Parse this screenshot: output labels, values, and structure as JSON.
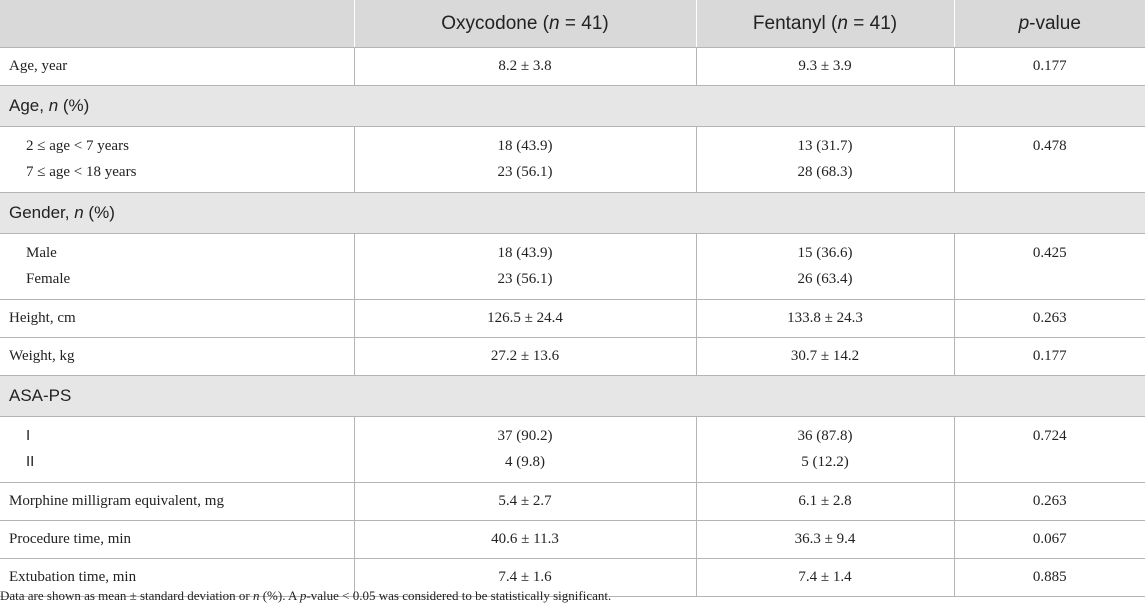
{
  "header": {
    "col1": "",
    "col2_pre": "Oxycodone (",
    "col2_n": "n",
    "col2_post": " = 41)",
    "col3_pre": "Fentanyl (",
    "col3_n": "n",
    "col3_post": " = 41)",
    "col4_p": "p",
    "col4_post": "-value"
  },
  "rows": {
    "age_year": {
      "label": "Age, year",
      "oxy": "8.2 ± 3.8",
      "fen": "9.3 ± 3.9",
      "p": "0.177"
    },
    "age_section": {
      "pre": "Age, ",
      "n": "n",
      "post": " (%)"
    },
    "age_groups": {
      "labels": [
        "2 ≤ age < 7 years",
        "7 ≤ age < 18 years"
      ],
      "oxy": [
        "18 (43.9)",
        "23 (56.1)"
      ],
      "fen": [
        "13 (31.7)",
        "28 (68.3)"
      ],
      "p": "0.478"
    },
    "gender_section": {
      "pre": "Gender, ",
      "n": "n",
      "post": " (%)"
    },
    "gender_groups": {
      "labels": [
        "Male",
        "Female"
      ],
      "oxy": [
        "18 (43.9)",
        "23 (56.1)"
      ],
      "fen": [
        "15 (36.6)",
        "26 (63.4)"
      ],
      "p": "0.425"
    },
    "height": {
      "label": "Height, cm",
      "oxy": "126.5 ± 24.4",
      "fen": "133.8 ± 24.3",
      "p": "0.263"
    },
    "weight": {
      "label": "Weight, kg",
      "oxy": "27.2 ± 13.6",
      "fen": "30.7 ± 14.2",
      "p": "0.177"
    },
    "asa_section": {
      "label": "ASA-PS"
    },
    "asa_groups": {
      "labels": [
        "I",
        "II"
      ],
      "oxy": [
        "37 (90.2)",
        "4 (9.8)"
      ],
      "fen": [
        "36 (87.8)",
        "5 (12.2)"
      ],
      "p": "0.724"
    },
    "mme": {
      "label": "Morphine milligram equivalent, mg",
      "oxy": "5.4 ± 2.7",
      "fen": "6.1 ± 2.8",
      "p": "0.263"
    },
    "procedure": {
      "label": "Procedure time, min",
      "oxy": "40.6 ± 11.3",
      "fen": "36.3 ± 9.4",
      "p": "0.067"
    },
    "extubation": {
      "label": "Extubation time, min",
      "oxy": "7.4 ± 1.6",
      "fen": "7.4 ± 1.4",
      "p": "0.885"
    }
  },
  "footnote": {
    "part1": "Data are shown as mean ± standard deviation or ",
    "n": "n",
    "part2": " (%). A ",
    "p": "p",
    "part3": "-value < 0.05 was considered to be statistically significant."
  }
}
